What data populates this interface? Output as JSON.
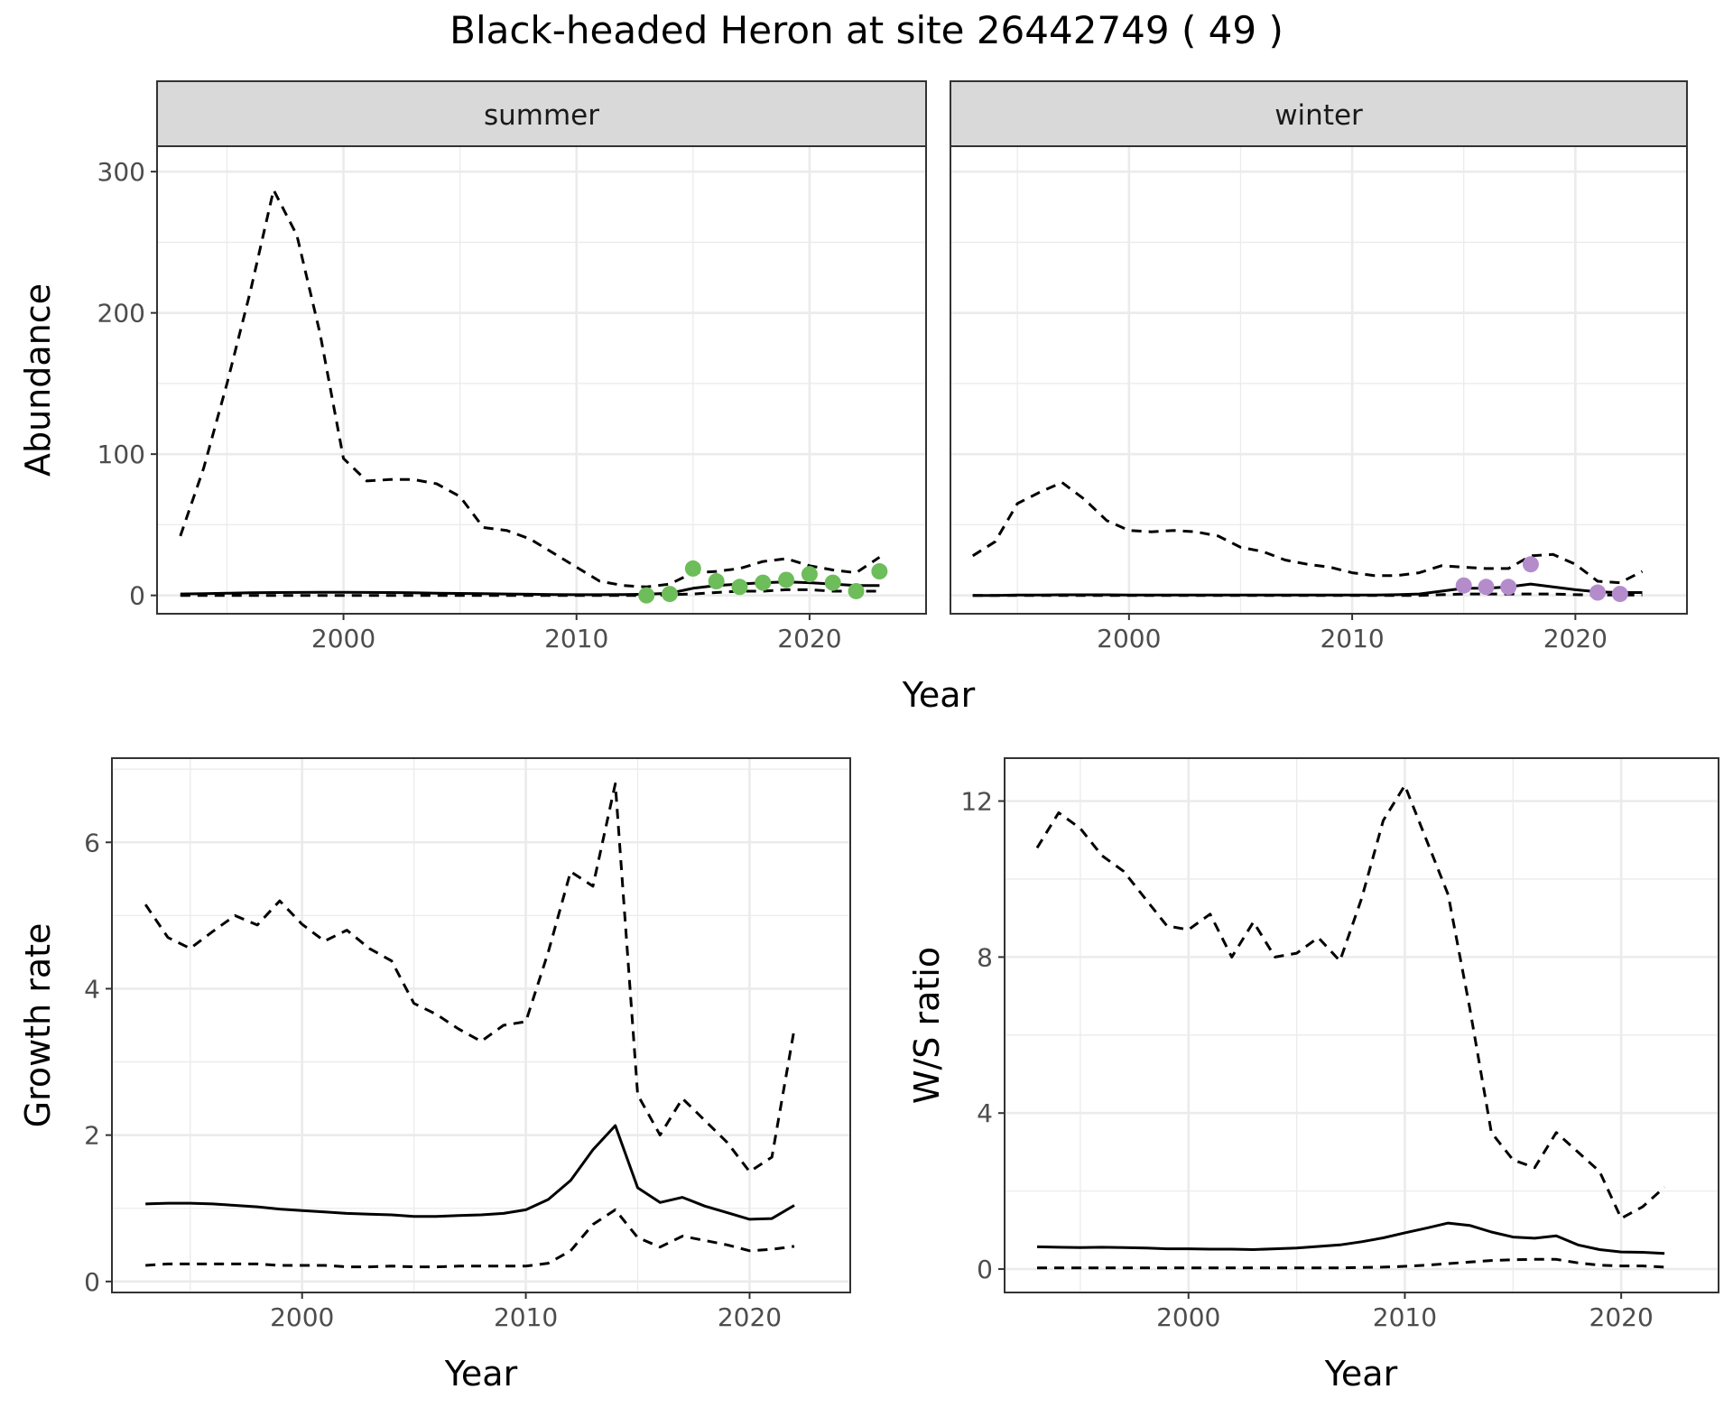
{
  "title": "Black-headed Heron at site 26442749 ( 49 )",
  "colors": {
    "summer_points": "#6dbd5a",
    "winter_points": "#b48ccc",
    "line": "#000000",
    "grid": "#ebebeb",
    "strip": "#d9d9d9"
  },
  "chart_data": [
    {
      "id": "abundance",
      "type": "line",
      "title": "Black-headed Heron at site 26442749 ( 49 )",
      "xlabel": "Year",
      "ylabel": "Abundance",
      "xlim": [
        1992,
        2025
      ],
      "ylim": [
        -13,
        318
      ],
      "x_ticks": [
        2000,
        2010,
        2020
      ],
      "y_ticks": [
        0,
        100,
        200,
        300
      ],
      "facets": [
        {
          "label": "summer",
          "points_color": "#6dbd5a",
          "series": [
            {
              "name": "mean",
              "style": "solid",
              "x": [
                1993,
                1994,
                1995,
                1996,
                1997,
                1998,
                1999,
                2000,
                2001,
                2002,
                2003,
                2004,
                2005,
                2006,
                2007,
                2008,
                2009,
                2010,
                2011,
                2012,
                2013,
                2014,
                2015,
                2016,
                2017,
                2018,
                2019,
                2020,
                2021,
                2022,
                2023
              ],
              "values": [
                1,
                1.2,
                1.5,
                1.8,
                2,
                2.1,
                2.2,
                2.2,
                2.1,
                2,
                1.8,
                1.6,
                1.4,
                1.2,
                1,
                0.8,
                0.6,
                0.5,
                0.5,
                0.6,
                0.8,
                1.5,
                5,
                7,
                8,
                9,
                9.5,
                9,
                8,
                7,
                7
              ]
            },
            {
              "name": "upper",
              "style": "dashed",
              "x": [
                1993,
                1994,
                1995,
                1996,
                1997,
                1998,
                1999,
                2000,
                2001,
                2002,
                2003,
                2004,
                2005,
                2006,
                2007,
                2008,
                2009,
                2010,
                2011,
                2012,
                2013,
                2014,
                2015,
                2016,
                2017,
                2018,
                2019,
                2020,
                2021,
                2022,
                2023
              ],
              "values": [
                42,
                90,
                150,
                215,
                287,
                255,
                185,
                97,
                81,
                82,
                82,
                79,
                70,
                48,
                46,
                40,
                30,
                20,
                10,
                7,
                6,
                8,
                16,
                17,
                19,
                24,
                26,
                21,
                18,
                16,
                27
              ]
            },
            {
              "name": "lower",
              "style": "dashed",
              "x": [
                1993,
                1994,
                1995,
                1996,
                1997,
                1998,
                1999,
                2000,
                2001,
                2002,
                2003,
                2004,
                2005,
                2006,
                2007,
                2008,
                2009,
                2010,
                2011,
                2012,
                2013,
                2014,
                2015,
                2016,
                2017,
                2018,
                2019,
                2020,
                2021,
                2022,
                2023
              ],
              "values": [
                0,
                0,
                0,
                0,
                0,
                0,
                0,
                0,
                0,
                0,
                0,
                0,
                0,
                0,
                0,
                0,
                0,
                0,
                0,
                0,
                0,
                0.5,
                1,
                2,
                3,
                3,
                4,
                4,
                3,
                3,
                3
              ]
            }
          ],
          "points": {
            "x": [
              2013,
              2014,
              2015,
              2016,
              2017,
              2018,
              2019,
              2020,
              2021,
              2022,
              2023
            ],
            "values": [
              0,
              1,
              19,
              10,
              6,
              9,
              11,
              15,
              9,
              3,
              17
            ]
          }
        },
        {
          "label": "winter",
          "points_color": "#b48ccc",
          "series": [
            {
              "name": "mean",
              "style": "solid",
              "x": [
                1993,
                1994,
                1995,
                1996,
                1997,
                1998,
                1999,
                2000,
                2001,
                2002,
                2003,
                2004,
                2005,
                2006,
                2007,
                2008,
                2009,
                2010,
                2011,
                2012,
                2013,
                2014,
                2015,
                2016,
                2017,
                2018,
                2019,
                2020,
                2021,
                2022,
                2023
              ],
              "values": [
                0,
                0,
                0.2,
                0.3,
                0.4,
                0.4,
                0.4,
                0.3,
                0.3,
                0.2,
                0.2,
                0.2,
                0.2,
                0.2,
                0.2,
                0.2,
                0.2,
                0.2,
                0.2,
                0.5,
                1,
                3,
                5,
                5,
                6,
                8,
                6,
                4,
                2.5,
                2,
                2
              ]
            },
            {
              "name": "upper",
              "style": "dashed",
              "x": [
                1993,
                1994,
                1995,
                1996,
                1997,
                1998,
                1999,
                2000,
                2001,
                2002,
                2003,
                2004,
                2005,
                2006,
                2007,
                2008,
                2009,
                2010,
                2011,
                2012,
                2013,
                2014,
                2015,
                2016,
                2017,
                2018,
                2019,
                2020,
                2021,
                2022,
                2023
              ],
              "values": [
                28,
                38,
                65,
                73,
                80,
                68,
                53,
                46,
                45,
                46,
                45,
                42,
                34,
                31,
                25,
                22,
                20,
                16,
                14,
                14,
                16,
                21,
                20,
                19,
                19,
                28,
                29,
                22,
                10,
                9,
                17
              ]
            },
            {
              "name": "lower",
              "style": "dashed",
              "x": [
                1993,
                1994,
                1995,
                1996,
                1997,
                1998,
                1999,
                2000,
                2001,
                2002,
                2003,
                2004,
                2005,
                2006,
                2007,
                2008,
                2009,
                2010,
                2011,
                2012,
                2013,
                2014,
                2015,
                2016,
                2017,
                2018,
                2019,
                2020,
                2021,
                2022,
                2023
              ],
              "values": [
                0,
                0,
                0,
                0,
                0,
                0,
                0,
                0,
                0,
                0,
                0,
                0,
                0,
                0,
                0,
                0,
                0,
                0,
                0,
                0,
                0,
                0.5,
                1,
                1,
                1,
                1,
                1,
                0.5,
                0.3,
                0.3,
                0.3
              ]
            }
          ],
          "points": {
            "x": [
              2015,
              2016,
              2017,
              2018,
              2021,
              2022
            ],
            "values": [
              7,
              6,
              6,
              22,
              2,
              1
            ]
          }
        }
      ]
    },
    {
      "id": "growth",
      "type": "line",
      "xlabel": "Year",
      "ylabel": "Growth rate",
      "xlim": [
        1991.5,
        2024.5
      ],
      "ylim": [
        -0.15,
        7.15
      ],
      "x_ticks": [
        2000,
        2010,
        2020
      ],
      "y_ticks": [
        0,
        2,
        4,
        6
      ],
      "series": [
        {
          "name": "mean",
          "style": "solid",
          "x": [
            1993,
            1994,
            1995,
            1996,
            1997,
            1998,
            1999,
            2000,
            2001,
            2002,
            2003,
            2004,
            2005,
            2006,
            2007,
            2008,
            2009,
            2010,
            2011,
            2012,
            2013,
            2014,
            2015,
            2016,
            2017,
            2018,
            2019,
            2020,
            2021,
            2022
          ],
          "values": [
            1.06,
            1.07,
            1.07,
            1.06,
            1.04,
            1.02,
            0.99,
            0.97,
            0.95,
            0.93,
            0.92,
            0.91,
            0.89,
            0.89,
            0.9,
            0.91,
            0.93,
            0.98,
            1.12,
            1.38,
            1.8,
            2.13,
            1.28,
            1.08,
            1.15,
            1.03,
            0.94,
            0.85,
            0.86,
            1.04
          ]
        },
        {
          "name": "upper",
          "style": "dashed",
          "x": [
            1993,
            1994,
            1995,
            1996,
            1997,
            1998,
            1999,
            2000,
            2001,
            2002,
            2003,
            2004,
            2005,
            2006,
            2007,
            2008,
            2009,
            2010,
            2011,
            2012,
            2013,
            2014,
            2015,
            2016,
            2017,
            2018,
            2019,
            2020,
            2021,
            2022
          ],
          "values": [
            5.15,
            4.7,
            4.55,
            4.78,
            5.0,
            4.87,
            5.2,
            4.88,
            4.65,
            4.8,
            4.55,
            4.38,
            3.8,
            3.65,
            3.45,
            3.28,
            3.5,
            3.55,
            4.5,
            5.6,
            5.4,
            6.8,
            2.55,
            2.0,
            2.5,
            2.2,
            1.9,
            1.5,
            1.7,
            3.45
          ]
        },
        {
          "name": "lower",
          "style": "dashed",
          "x": [
            1993,
            1994,
            1995,
            1996,
            1997,
            1998,
            1999,
            2000,
            2001,
            2002,
            2003,
            2004,
            2005,
            2006,
            2007,
            2008,
            2009,
            2010,
            2011,
            2012,
            2013,
            2014,
            2015,
            2016,
            2017,
            2018,
            2019,
            2020,
            2021,
            2022
          ],
          "values": [
            0.22,
            0.24,
            0.24,
            0.24,
            0.24,
            0.24,
            0.22,
            0.22,
            0.22,
            0.2,
            0.2,
            0.21,
            0.2,
            0.2,
            0.21,
            0.21,
            0.21,
            0.21,
            0.25,
            0.42,
            0.78,
            0.98,
            0.6,
            0.47,
            0.62,
            0.56,
            0.5,
            0.42,
            0.44,
            0.48
          ]
        }
      ]
    },
    {
      "id": "ratio",
      "type": "line",
      "xlabel": "Year",
      "ylabel": "W/S ratio",
      "xlim": [
        1991.5,
        2024.5
      ],
      "ylim": [
        -0.6,
        13.1
      ],
      "x_ticks": [
        2000,
        2010,
        2020
      ],
      "y_ticks": [
        0,
        4,
        8,
        12
      ],
      "series": [
        {
          "name": "mean",
          "style": "solid",
          "x": [
            1993,
            1994,
            1995,
            1996,
            1997,
            1998,
            1999,
            2000,
            2001,
            2002,
            2003,
            2004,
            2005,
            2006,
            2007,
            2008,
            2009,
            2010,
            2011,
            2012,
            2013,
            2014,
            2015,
            2016,
            2017,
            2018,
            2019,
            2020,
            2021,
            2022
          ],
          "values": [
            0.57,
            0.56,
            0.55,
            0.56,
            0.55,
            0.54,
            0.52,
            0.52,
            0.51,
            0.51,
            0.5,
            0.52,
            0.54,
            0.58,
            0.62,
            0.7,
            0.8,
            0.93,
            1.05,
            1.18,
            1.12,
            0.95,
            0.82,
            0.79,
            0.85,
            0.62,
            0.5,
            0.44,
            0.43,
            0.4
          ]
        },
        {
          "name": "upper",
          "style": "dashed",
          "x": [
            1993,
            1994,
            1995,
            1996,
            1997,
            1998,
            1999,
            2000,
            2001,
            2002,
            2003,
            2004,
            2005,
            2006,
            2007,
            2008,
            2009,
            2010,
            2011,
            2012,
            2013,
            2014,
            2015,
            2016,
            2017,
            2018,
            2019,
            2020,
            2021,
            2022
          ],
          "values": [
            10.8,
            11.7,
            11.3,
            10.6,
            10.2,
            9.5,
            8.8,
            8.7,
            9.1,
            8.0,
            8.9,
            8.0,
            8.1,
            8.5,
            7.9,
            9.5,
            11.5,
            12.4,
            11.0,
            9.6,
            6.7,
            3.5,
            2.8,
            2.6,
            3.5,
            3.0,
            2.5,
            1.3,
            1.6,
            2.1
          ]
        },
        {
          "name": "lower",
          "style": "dashed",
          "x": [
            1993,
            1994,
            1995,
            1996,
            1997,
            1998,
            1999,
            2000,
            2001,
            2002,
            2003,
            2004,
            2005,
            2006,
            2007,
            2008,
            2009,
            2010,
            2011,
            2012,
            2013,
            2014,
            2015,
            2016,
            2017,
            2018,
            2019,
            2020,
            2021,
            2022
          ],
          "values": [
            0.03,
            0.03,
            0.03,
            0.03,
            0.03,
            0.03,
            0.03,
            0.03,
            0.03,
            0.03,
            0.03,
            0.03,
            0.03,
            0.03,
            0.03,
            0.04,
            0.05,
            0.07,
            0.1,
            0.14,
            0.18,
            0.22,
            0.24,
            0.25,
            0.25,
            0.16,
            0.1,
            0.08,
            0.08,
            0.05
          ]
        }
      ]
    }
  ]
}
